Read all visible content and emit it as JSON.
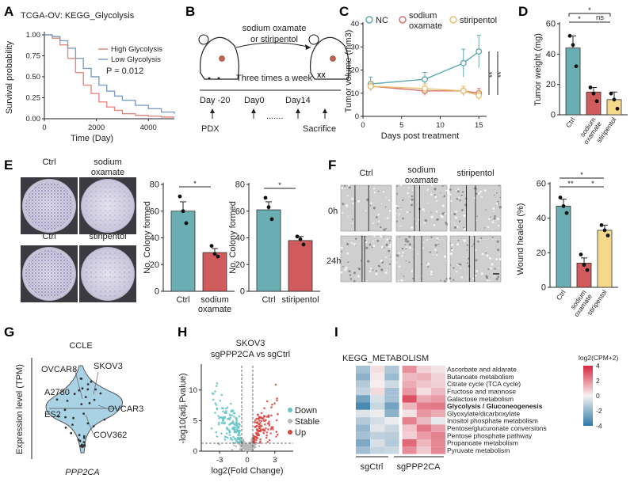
{
  "panels": {
    "a": "A",
    "b": "B",
    "c": "C",
    "d": "D",
    "e": "E",
    "f": "F",
    "g": "G",
    "h": "H",
    "i": "I"
  },
  "colors": {
    "teal": "#6aaeb4",
    "red": "#cf5b5c",
    "yellow": "#f5d98a",
    "nc": "#5fa9b0",
    "oxa": "#d9706c",
    "sti": "#e9c06e",
    "km_high": "#e58a80",
    "km_low": "#7f9ec6",
    "volcano_down": "#63c3c5",
    "volcano_up": "#d9443f",
    "volcano_stable": "#b8b8b8"
  },
  "stats": {
    "star": "*",
    "double_star": "**",
    "ns": "ns"
  },
  "panelB": {
    "drug": "sodium oxamate\nor stiripentol",
    "schedule": "Three times a week",
    "days": [
      "Day -20",
      "Day0",
      "Day14"
    ],
    "dots": ".......",
    "events": [
      "PDX",
      "Sacrifice"
    ],
    "mouse_mark": "XX"
  },
  "panelE": {
    "plate_labels": [
      "Ctrl",
      "sodium\noxamate",
      "Ctrl",
      "stiripentol"
    ]
  },
  "panelF": {
    "col_labels": [
      "Ctrl",
      "sodium\noxamate",
      "stiripentol"
    ],
    "row_labels": [
      "0h",
      "24h"
    ]
  },
  "chart_data": [
    {
      "id": "A",
      "type": "line",
      "title": "TCGA-OV: KEGG_Glycolysis",
      "xlabel": "Time (Day)",
      "ylabel": "Survival probability",
      "xlim": [
        0,
        5000
      ],
      "ylim": [
        0,
        1
      ],
      "xticks": [
        0,
        2000,
        4000
      ],
      "yticks": [
        "0.00",
        "0.25",
        "0.50",
        "0.75",
        "1.00"
      ],
      "annotation": "P = 0.012",
      "series": [
        {
          "name": "High Glycolysis",
          "x": [
            0,
            300,
            600,
            900,
            1200,
            1500,
            1800,
            2100,
            2400,
            2700,
            3000,
            3500,
            4000,
            4500,
            5000
          ],
          "y": [
            1,
            0.96,
            0.88,
            0.72,
            0.55,
            0.4,
            0.3,
            0.2,
            0.14,
            0.1,
            0.06,
            0.04,
            0.03,
            0.02,
            0.02
          ]
        },
        {
          "name": "Low Glycolysis",
          "x": [
            0,
            300,
            600,
            900,
            1200,
            1500,
            1800,
            2100,
            2400,
            2700,
            3000,
            3500,
            4000,
            4500,
            5000
          ],
          "y": [
            1,
            0.98,
            0.93,
            0.84,
            0.72,
            0.6,
            0.5,
            0.4,
            0.33,
            0.27,
            0.22,
            0.16,
            0.12,
            0.08,
            0.06
          ]
        }
      ]
    },
    {
      "id": "C",
      "type": "line",
      "xlabel": "Days post treatment",
      "ylabel": "Tumor volume (mm3)",
      "xlim": [
        0,
        16
      ],
      "ylim": [
        0,
        40
      ],
      "xticks": [
        0,
        5,
        10,
        15
      ],
      "yticks": [
        0,
        10,
        20,
        30,
        40
      ],
      "x": [
        1,
        8,
        13,
        15
      ],
      "series": [
        {
          "name": "NC",
          "values": [
            14,
            16,
            23,
            28
          ],
          "err": [
            3,
            3,
            6,
            7
          ]
        },
        {
          "name": "sodium\noxamate",
          "values": [
            13,
            11,
            11,
            10
          ],
          "err": [
            2,
            2,
            2,
            2
          ]
        },
        {
          "name": "stiripentol",
          "values": [
            13,
            12,
            11,
            9
          ],
          "err": [
            2,
            2,
            2,
            2
          ]
        }
      ],
      "sig": [
        "**",
        "**"
      ]
    },
    {
      "id": "D",
      "type": "bar",
      "ylabel": "Tumor weight (mg)",
      "ylim": [
        0,
        60
      ],
      "yticks": [
        0,
        20,
        40,
        60
      ],
      "categories": [
        "Ctrl",
        "sodium\noxamate",
        "stiripentol"
      ],
      "values": [
        44,
        15,
        10
      ],
      "err": [
        8,
        3,
        5
      ],
      "points": [
        [
          52,
          46,
          32
        ],
        [
          18,
          14,
          9
        ],
        [
          14,
          10,
          4
        ]
      ]
    },
    {
      "id": "E1",
      "type": "bar",
      "ylabel": "No. Colony formed",
      "ylim": [
        0,
        80
      ],
      "yticks": [
        0,
        20,
        40,
        60,
        80
      ],
      "categories": [
        "Ctrl",
        "sodium\noxamate"
      ],
      "values": [
        60,
        29
      ],
      "err": [
        7,
        3
      ],
      "points": [
        [
          71,
          60,
          51
        ],
        [
          34,
          28,
          26
        ]
      ]
    },
    {
      "id": "E2",
      "type": "bar",
      "ylabel": "No. Colony formed",
      "ylim": [
        0,
        80
      ],
      "yticks": [
        0,
        20,
        40,
        60,
        80
      ],
      "categories": [
        "Ctrl",
        "stiripentol"
      ],
      "values": [
        61,
        38
      ],
      "err": [
        6,
        3
      ],
      "points": [
        [
          70,
          63,
          54
        ],
        [
          41,
          39,
          35
        ]
      ]
    },
    {
      "id": "F",
      "type": "bar",
      "ylabel": "Wound healed (%)",
      "ylim": [
        0,
        60
      ],
      "yticks": [
        0,
        20,
        40,
        60
      ],
      "categories": [
        "Ctrl",
        "sodium\noxamate",
        "stiripentol"
      ],
      "values": [
        47,
        14,
        33
      ],
      "err": [
        4,
        3,
        3
      ],
      "points": [
        [
          52,
          47,
          43
        ],
        [
          19,
          13,
          10
        ],
        [
          36,
          33,
          30
        ]
      ]
    },
    {
      "id": "G",
      "type": "scatter",
      "title": "CCLE",
      "ylabel": "Expression level (TPM)",
      "xlabel": "PPP2CA",
      "labels": [
        "OVCAR8",
        "SKOV3",
        "A2780",
        "OVCAR3",
        "ES2",
        "COV362"
      ]
    },
    {
      "id": "H",
      "type": "scatter",
      "title": "SKOV3\nsgPPP2CA vs sgCtrl",
      "xlabel": "log2(Fold Change)",
      "ylabel": "-log10(adj.Pvalue)",
      "xlim": [
        -5,
        5
      ],
      "ylim": [
        0,
        14
      ],
      "xticks": [
        -3,
        0,
        3
      ],
      "yticks": [
        0,
        5,
        10
      ],
      "legend": [
        "Down",
        "Stable",
        "Up"
      ]
    },
    {
      "id": "I",
      "type": "heatmap",
      "title": "KEGG_METABOLISM",
      "legend_title": "log2(CPM+2)",
      "legend_ticks": [
        "4",
        "2",
        "0",
        "-2",
        "-4"
      ],
      "groups": [
        "sgCtrl",
        "sgPPP2CA"
      ],
      "rows": [
        "Ascorbate and aldarate",
        "Butanoate metabolism",
        "Citrate cycle (TCA cycle)",
        "Fructose and mannose",
        "Galactose metabolism",
        "Glycolysis / Gluconeogenesis",
        "Glyoxylate/dicarboxylate",
        "Inositol phosphate metabolism",
        "Pentose/glucuronate conversions",
        "Pentose phosphate pathway",
        "Propanoate metabolism",
        "Pyruvate metabolism"
      ],
      "bold_row": "Glycolysis / Gluconeogenesis",
      "values": [
        [
          -1.6,
          0.4,
          -1.4,
          1.9,
          0.6,
          0.3
        ],
        [
          -2.1,
          0.2,
          -1.8,
          1.1,
          1.3,
          0.6
        ],
        [
          -1.3,
          0.1,
          -0.8,
          1.4,
          0.9,
          0.7
        ],
        [
          -1.0,
          0.5,
          -1.6,
          1.8,
          0.4,
          1.1
        ],
        [
          -2.6,
          -0.6,
          -1.6,
          3.2,
          1.4,
          1.7
        ],
        [
          -3.4,
          -0.9,
          -2.6,
          1.2,
          2.3,
          2.4
        ],
        [
          -0.5,
          -0.2,
          -2.1,
          0.3,
          1.8,
          1.4
        ],
        [
          -1.3,
          -0.7,
          -0.2,
          2.2,
          1.1,
          -0.3
        ],
        [
          -1.9,
          -0.4,
          -0.9,
          0.9,
          2.4,
          1.6
        ],
        [
          -1.6,
          -1.1,
          -1.2,
          0.7,
          1.7,
          2.2
        ],
        [
          -2.4,
          -0.6,
          -1.3,
          2.7,
          1.2,
          2.1
        ],
        [
          -1.7,
          -1.0,
          -0.9,
          2.0,
          0.8,
          2.1
        ]
      ]
    }
  ]
}
